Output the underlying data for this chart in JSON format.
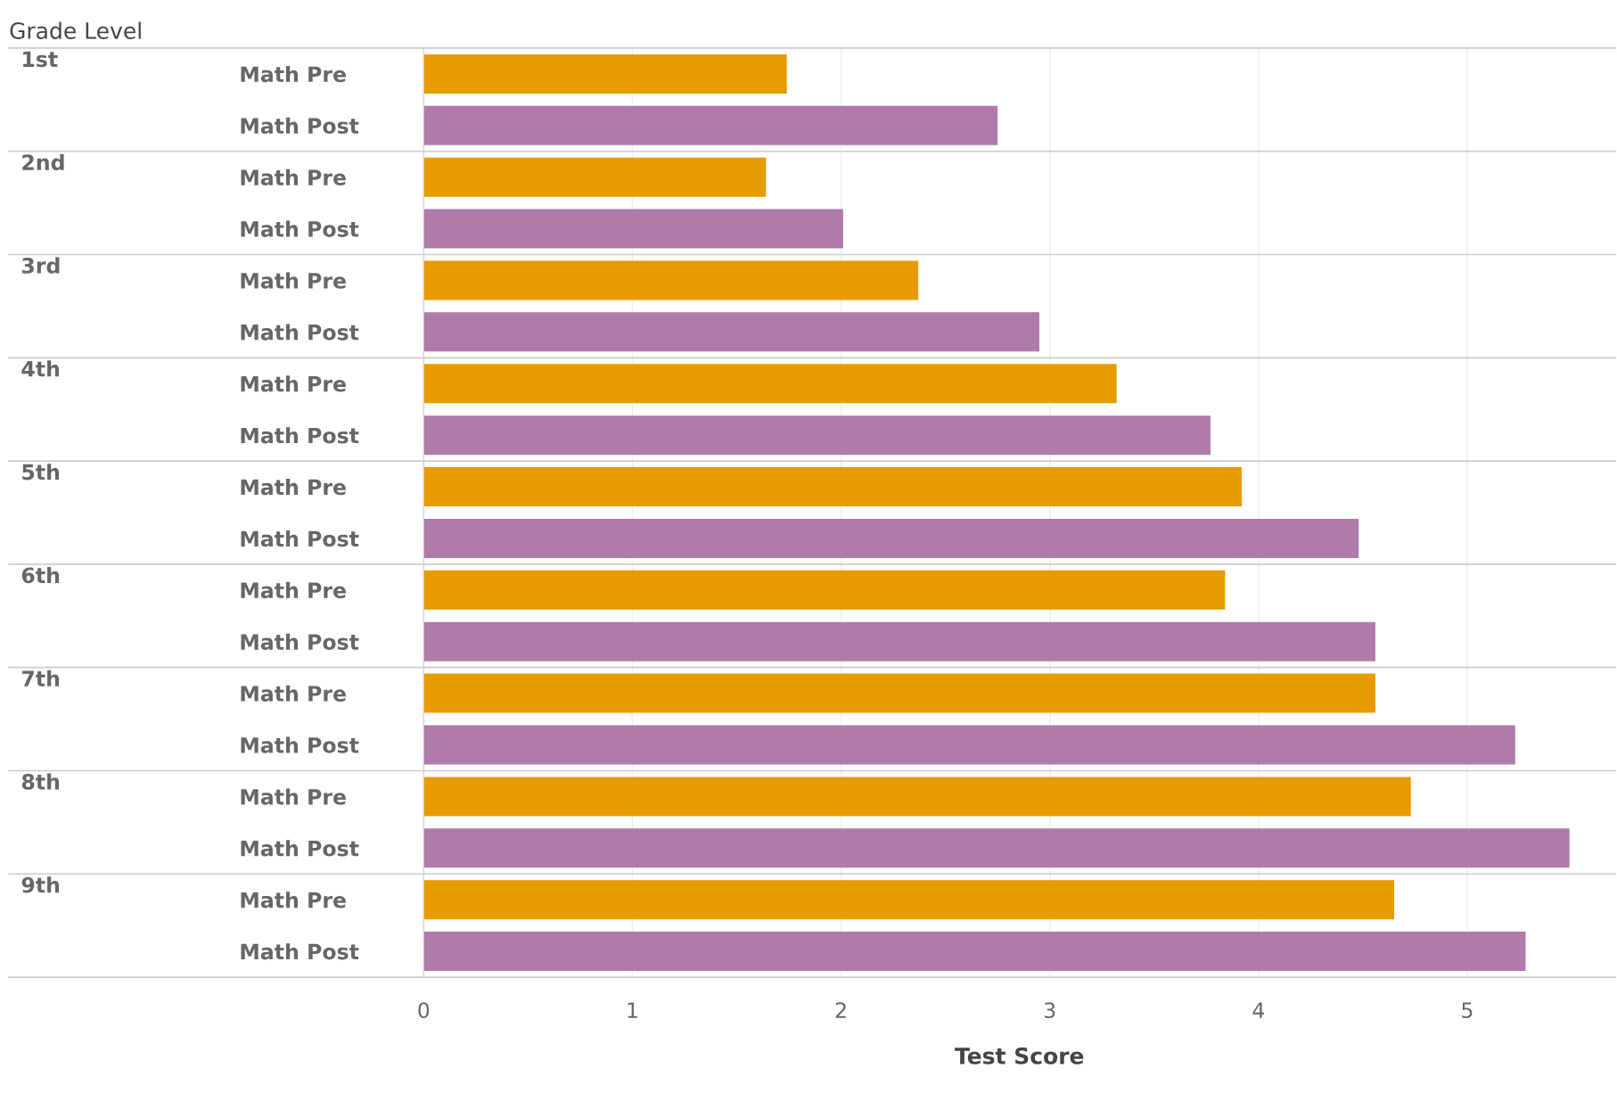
{
  "chart_data": {
    "type": "bar",
    "orientation": "horizontal",
    "xlabel": "Test Score",
    "annotations": [
      "Grade Level",
      "1st",
      "2nd",
      "3rd",
      "4th",
      "5th",
      "6th",
      "7th",
      "8th",
      "9th"
    ],
    "categories": [
      "Math Pre",
      "Math Post",
      "Math Pre",
      "Math Post",
      "Math Pre",
      "Math Post",
      "Math Pre",
      "Math Post",
      "Math Pre",
      "Math Post",
      "Math Pre",
      "Math Post",
      "Math Pre",
      "Math Post",
      "Math Pre",
      "Math Post",
      "Math Pre",
      "Math Post"
    ],
    "values": [
      1.74,
      2.75,
      1.64,
      2.01,
      2.37,
      2.95,
      3.32,
      3.77,
      3.92,
      4.48,
      3.84,
      4.56,
      4.56,
      5.23,
      4.73,
      5.49,
      4.65,
      5.28
    ],
    "colors": [
      "#e69b00",
      "#b07aab",
      "#e69b00",
      "#b07aab",
      "#e69b00",
      "#b07aab",
      "#e69b00",
      "#b07aab",
      "#e69b00",
      "#b07aab",
      "#e69b00",
      "#b07aab",
      "#e69b00",
      "#b07aab",
      "#e69b00",
      "#b07aab",
      "#e69b00",
      "#b07aab"
    ],
    "xlim": [
      0,
      5.71
    ],
    "xticks": [
      0,
      1,
      2,
      3,
      4,
      5
    ],
    "grid": "x"
  }
}
